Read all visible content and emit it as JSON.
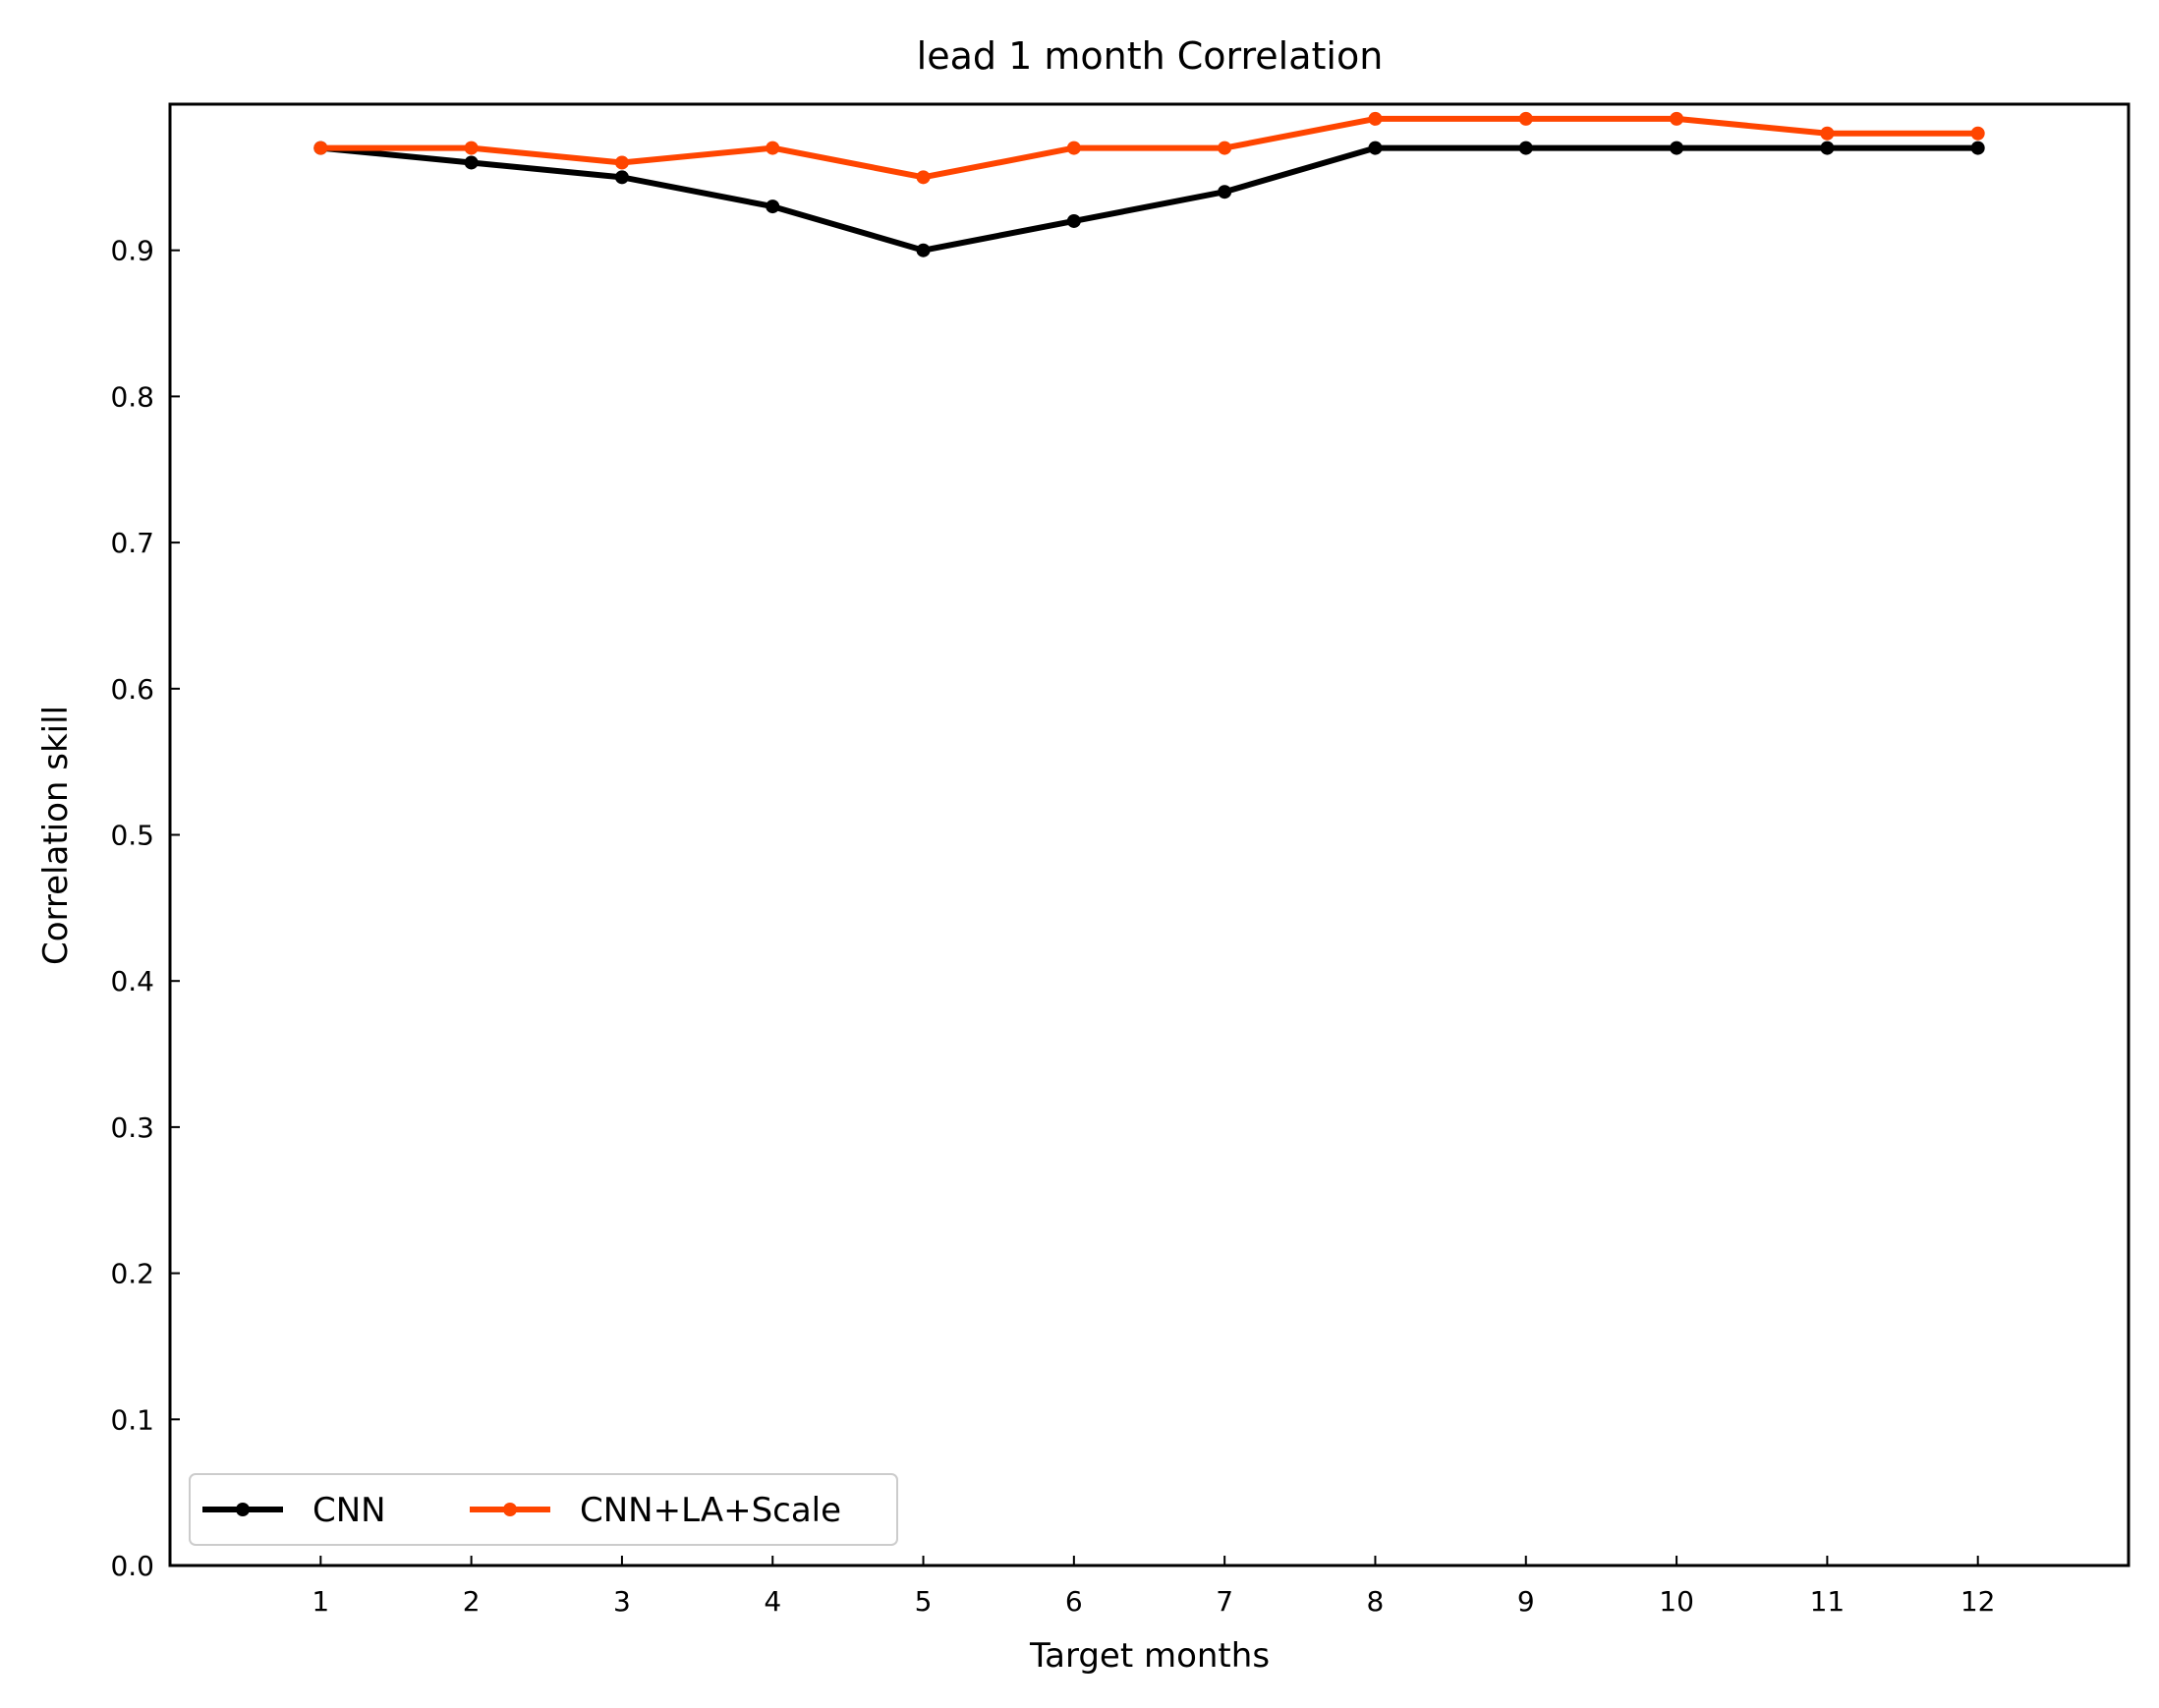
{
  "chart_data": {
    "type": "line",
    "title": "lead 1 month Correlation",
    "xlabel": "Target months",
    "ylabel": "Correlation skill",
    "x": [
      1,
      2,
      3,
      4,
      5,
      6,
      7,
      8,
      9,
      10,
      11,
      12
    ],
    "xlim": [
      0,
      13
    ],
    "ylim": [
      0,
      1
    ],
    "yticks": [
      0.0,
      0.1,
      0.2,
      0.3,
      0.4,
      0.5,
      0.6,
      0.7,
      0.8,
      0.9
    ],
    "ytick_labels": [
      "0.0",
      "0.1",
      "0.2",
      "0.3",
      "0.4",
      "0.5",
      "0.6",
      "0.7",
      "0.8",
      "0.9"
    ],
    "grid": false,
    "legend": {
      "placement": "lower-left",
      "columns": 2
    },
    "series": [
      {
        "name": "CNN",
        "color": "#000000",
        "values": [
          0.97,
          0.96,
          0.95,
          0.93,
          0.9,
          0.92,
          0.94,
          0.97,
          0.97,
          0.97,
          0.97,
          0.97
        ]
      },
      {
        "name": "CNN+LA+Scale",
        "color": "#ff4500",
        "values": [
          0.97,
          0.97,
          0.96,
          0.97,
          0.95,
          0.97,
          0.97,
          0.99,
          0.99,
          0.99,
          0.98,
          0.98
        ]
      }
    ]
  }
}
